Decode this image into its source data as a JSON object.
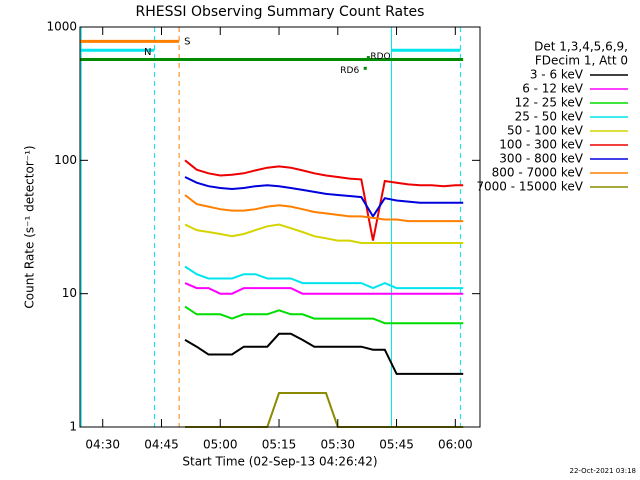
{
  "chart_data": {
    "type": "line",
    "title": "RHESSI Observing Summary Count Rates",
    "x_label": "Start Time (02-Sep-13 04:26:42)",
    "y_label": "Count Rate (s⁻¹ detector⁻¹)",
    "legend_header": [
      "Det 1,3,4,5,6,9,",
      "FDecim 1, Att 0"
    ],
    "footer": "22-Oct-2021 03:18",
    "log_y": true,
    "xlim": [
      24.2,
      126.3
    ],
    "xticks": [
      {
        "value": 30,
        "label": "04:30"
      },
      {
        "value": 45,
        "label": "04:45"
      },
      {
        "value": 60,
        "label": "05:00"
      },
      {
        "value": 75,
        "label": "05:15"
      },
      {
        "value": 90,
        "label": "05:30"
      },
      {
        "value": 105,
        "label": "05:45"
      },
      {
        "value": 120,
        "label": "06:00"
      }
    ],
    "ylim": [
      1,
      1000
    ],
    "yticks": [
      1,
      10,
      100,
      1000
    ],
    "x": [
      51,
      54,
      57,
      60,
      63,
      66,
      69,
      72,
      75,
      78,
      81,
      84,
      87,
      90,
      93,
      96,
      99,
      102,
      105,
      108,
      111,
      114,
      117,
      120,
      122
    ],
    "series": [
      {
        "name": "3 - 6 keV",
        "color": "#000000",
        "values": [
          4.5,
          4,
          3.5,
          3.5,
          3.5,
          4,
          4,
          4,
          5,
          5,
          4.5,
          4,
          4,
          4,
          4,
          4,
          3.8,
          3.8,
          2.5,
          2.5,
          2.5,
          2.5,
          2.5,
          2.5,
          2.5
        ]
      },
      {
        "name": "6 - 12 keV",
        "color": "#ff00ff",
        "values": [
          12,
          11,
          11,
          10,
          10,
          11,
          11,
          11,
          11,
          11,
          10,
          10,
          10,
          10,
          10,
          10,
          10,
          10,
          10,
          10,
          10,
          10,
          10,
          10,
          10
        ]
      },
      {
        "name": "12 - 25 keV",
        "color": "#00dd00",
        "values": [
          8,
          7,
          7,
          7,
          6.5,
          7,
          7,
          7,
          7.5,
          7,
          7,
          6.5,
          6.5,
          6.5,
          6.5,
          6.5,
          6.5,
          6,
          6,
          6,
          6,
          6,
          6,
          6,
          6
        ]
      },
      {
        "name": "25 - 50 keV",
        "color": "#00e5ee",
        "values": [
          16,
          14,
          13,
          13,
          13,
          14,
          14,
          13,
          13,
          13,
          12,
          12,
          12,
          12,
          12,
          12,
          11,
          12,
          11,
          11,
          11,
          11,
          11,
          11,
          11
        ]
      },
      {
        "name": "50 - 100 keV",
        "color": "#d4d400",
        "values": [
          33,
          30,
          29,
          28,
          27,
          28,
          30,
          32,
          33,
          31,
          29,
          27,
          26,
          25,
          25,
          24,
          24,
          24,
          24,
          24,
          24,
          24,
          24,
          24,
          24
        ]
      },
      {
        "name": "100 - 300 keV",
        "color": "#ee0000",
        "values": [
          100,
          85,
          80,
          77,
          78,
          80,
          84,
          88,
          90,
          88,
          84,
          80,
          77,
          75,
          73,
          72,
          25,
          70,
          68,
          66,
          65,
          65,
          64,
          65,
          65
        ]
      },
      {
        "name": "300 - 800 keV",
        "color": "#0000dd",
        "values": [
          75,
          68,
          64,
          62,
          61,
          62,
          64,
          65,
          64,
          62,
          60,
          58,
          56,
          55,
          54,
          53,
          38,
          52,
          50,
          49,
          48,
          48,
          48,
          48,
          48
        ]
      },
      {
        "name": "800 - 7000 keV",
        "color": "#ff7f00",
        "values": [
          55,
          47,
          45,
          43,
          42,
          42,
          43,
          45,
          46,
          45,
          43,
          41,
          40,
          39,
          38,
          38,
          37,
          36,
          36,
          35,
          35,
          35,
          35,
          35,
          35
        ]
      },
      {
        "name": "7000 - 15000 keV",
        "color": "#8b8b00",
        "values": [
          1,
          1,
          1,
          1,
          1,
          1,
          1,
          1,
          1.8,
          1.8,
          1.8,
          1.8,
          1.8,
          1,
          1,
          1,
          1,
          1,
          1,
          1,
          1,
          1,
          1,
          1,
          1
        ]
      }
    ],
    "vlines": [
      {
        "x": 24.5,
        "color": "#00e5ee",
        "dashed": false
      },
      {
        "x": 43.2,
        "color": "#00e5ee",
        "dashed": true
      },
      {
        "x": 49.5,
        "color": "#ff7f00",
        "dashed": true
      },
      {
        "x": 103.7,
        "color": "#00e5ee",
        "dashed": false
      },
      {
        "x": 121.3,
        "color": "#00e5ee",
        "dashed": true
      }
    ],
    "flags": [
      {
        "label": "S",
        "color": "#ff7f00",
        "start": 24.2,
        "end": 49.5,
        "level": 780
      },
      {
        "label": "N",
        "color": "#00e5ee",
        "start": 24.2,
        "end": 43.2,
        "level": 670
      },
      {
        "color": "#00e5ee",
        "start": 103.7,
        "end": 121.3,
        "level": 670
      },
      {
        "color": "#008b00",
        "start": 24.2,
        "end": 122,
        "level": 570
      }
    ],
    "markers": [
      {
        "text": "RDO",
        "color": "#008b00",
        "x": 97.8,
        "y": 590
      },
      {
        "text": "RD6",
        "color": "#008b00",
        "x": 97,
        "y": 490
      }
    ]
  }
}
